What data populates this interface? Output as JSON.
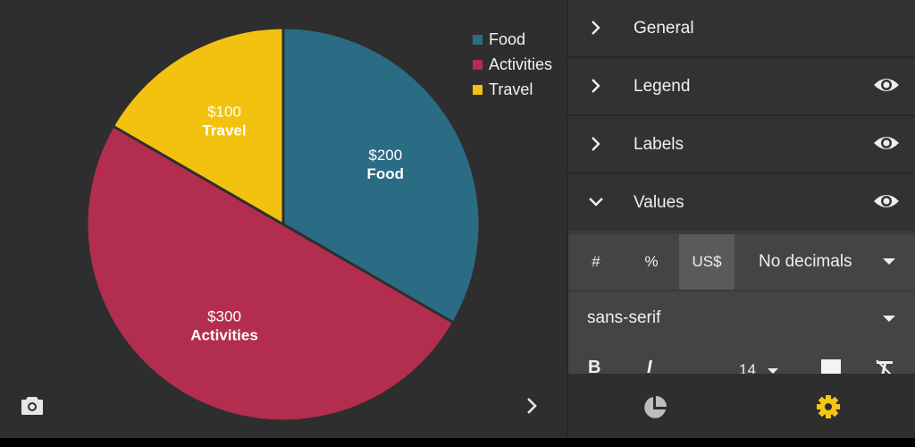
{
  "chart_data": {
    "type": "pie",
    "categories": [
      "Food",
      "Activities",
      "Travel"
    ],
    "values": [
      200,
      300,
      100
    ],
    "value_labels": [
      "$200",
      "$300",
      "$100"
    ],
    "colors": [
      "#2b6c85",
      "#b32e4e",
      "#f2c20f"
    ],
    "legend_position": "top-right"
  },
  "legend": [
    {
      "label": "Food",
      "color": "#2b6c85"
    },
    {
      "label": "Activities",
      "color": "#b32e4e"
    },
    {
      "label": "Travel",
      "color": "#f2c20f"
    }
  ],
  "icons": {
    "camera": "camera-icon",
    "expand": "chevron-right-icon",
    "chart_tab": "pie-chart-icon",
    "settings_tab": "gear-icon"
  },
  "panel": {
    "sections": [
      {
        "label": "General",
        "expanded": false,
        "visible_toggle": false
      },
      {
        "label": "Legend",
        "expanded": false,
        "visible_toggle": true
      },
      {
        "label": "Labels",
        "expanded": false,
        "visible_toggle": true
      },
      {
        "label": "Values",
        "expanded": true,
        "visible_toggle": true
      }
    ],
    "value_format": {
      "buttons": [
        "#",
        "%",
        "US$"
      ],
      "selected": "US$",
      "decimals": "No decimals"
    },
    "font": {
      "family": "sans-serif",
      "bold": "B",
      "italic": "I",
      "size": "14"
    }
  },
  "accent_color": "#f5c518"
}
